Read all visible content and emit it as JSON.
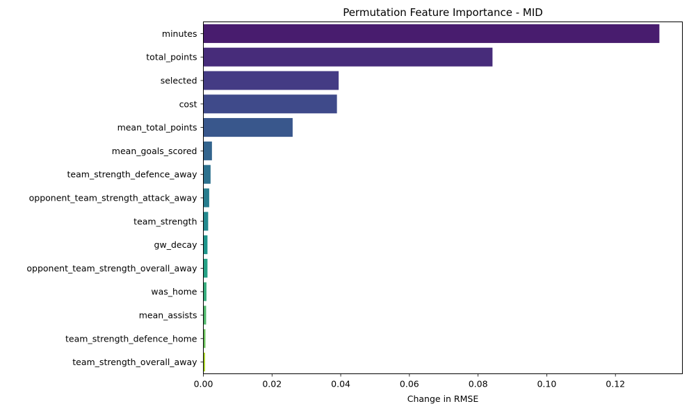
{
  "chart_data": {
    "type": "bar",
    "orientation": "horizontal",
    "title": "Permutation Feature Importance - MID",
    "xlabel": "Change in RMSE",
    "ylabel": "",
    "xlim": [
      0,
      0.1395
    ],
    "x_ticks": [
      "0.00",
      "0.02",
      "0.04",
      "0.06",
      "0.08",
      "0.10",
      "0.12"
    ],
    "x_tick_values": [
      0,
      0.02,
      0.04,
      0.06,
      0.08,
      0.1,
      0.12
    ],
    "grid": false,
    "legend": "none",
    "categories": [
      "minutes",
      "total_points",
      "selected",
      "cost",
      "mean_total_points",
      "mean_goals_scored",
      "team_strength_defence_away",
      "opponent_team_strength_attack_away",
      "team_strength",
      "gw_decay",
      "opponent_team_strength_overall_away",
      "was_home",
      "mean_assists",
      "team_strength_defence_home",
      "team_strength_overall_away"
    ],
    "values": [
      0.1328,
      0.0842,
      0.0394,
      0.0389,
      0.026,
      0.0025,
      0.0021,
      0.0017,
      0.0014,
      0.0012,
      0.0012,
      0.0009,
      0.0008,
      0.0006,
      0.0005
    ],
    "colors": [
      "#481c6e",
      "#472c7a",
      "#443b84",
      "#3f4a8a",
      "#39578c",
      "#33648d",
      "#2d718e",
      "#287d8e",
      "#23898e",
      "#1f958b",
      "#25a185",
      "#36ac7c",
      "#50b86c",
      "#6cc35c",
      "#aad42c"
    ]
  }
}
